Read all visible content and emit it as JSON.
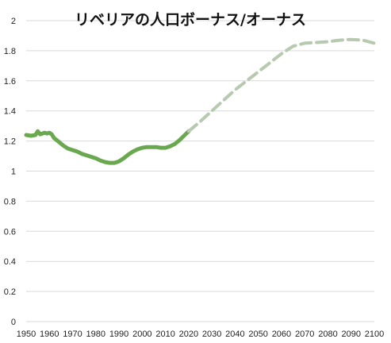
{
  "chart_data": {
    "type": "line",
    "title": "リベリアの人口ボーナス/オーナス",
    "xlabel": "",
    "ylabel": "",
    "xlim": [
      1950,
      2100
    ],
    "ylim": [
      0,
      2
    ],
    "x_ticks": [
      "1950",
      "1960",
      "1970",
      "1980",
      "1990",
      "2000",
      "2010",
      "2020",
      "2030",
      "2040",
      "2050",
      "2060",
      "2070",
      "2080",
      "2090",
      "2100"
    ],
    "y_ticks": [
      "0",
      "0.2",
      "0.4",
      "0.6",
      "0.8",
      "1",
      "1.2",
      "1.4",
      "1.6",
      "1.8",
      "2"
    ],
    "grid": "horizontal",
    "colors": {
      "actual": "#6aa84f",
      "projected": "#b7c9ae",
      "grid": "#d9d9d9"
    },
    "series": [
      {
        "style": "solid",
        "points": [
          [
            1950,
            1.24
          ],
          [
            1952,
            1.235
          ],
          [
            1954,
            1.24
          ],
          [
            1955,
            1.265
          ],
          [
            1956,
            1.245
          ],
          [
            1957,
            1.25
          ],
          [
            1958,
            1.255
          ],
          [
            1959,
            1.25
          ],
          [
            1960,
            1.255
          ],
          [
            1961,
            1.245
          ],
          [
            1962,
            1.22
          ],
          [
            1964,
            1.195
          ],
          [
            1966,
            1.17
          ],
          [
            1968,
            1.15
          ],
          [
            1970,
            1.14
          ],
          [
            1972,
            1.13
          ],
          [
            1974,
            1.115
          ],
          [
            1976,
            1.105
          ],
          [
            1978,
            1.095
          ],
          [
            1980,
            1.085
          ],
          [
            1982,
            1.07
          ],
          [
            1984,
            1.06
          ],
          [
            1986,
            1.055
          ],
          [
            1988,
            1.055
          ],
          [
            1990,
            1.065
          ],
          [
            1992,
            1.085
          ],
          [
            1994,
            1.11
          ],
          [
            1996,
            1.13
          ],
          [
            1998,
            1.145
          ],
          [
            2000,
            1.155
          ],
          [
            2002,
            1.16
          ],
          [
            2004,
            1.16
          ],
          [
            2006,
            1.16
          ],
          [
            2008,
            1.155
          ],
          [
            2010,
            1.155
          ],
          [
            2012,
            1.165
          ],
          [
            2014,
            1.18
          ],
          [
            2016,
            1.205
          ],
          [
            2018,
            1.235
          ],
          [
            2020,
            1.265
          ]
        ]
      },
      {
        "style": "dashed",
        "points": [
          [
            2020,
            1.265
          ],
          [
            2025,
            1.33
          ],
          [
            2030,
            1.4
          ],
          [
            2035,
            1.47
          ],
          [
            2040,
            1.54
          ],
          [
            2045,
            1.6
          ],
          [
            2050,
            1.66
          ],
          [
            2055,
            1.72
          ],
          [
            2060,
            1.78
          ],
          [
            2065,
            1.83
          ],
          [
            2070,
            1.85
          ],
          [
            2075,
            1.855
          ],
          [
            2080,
            1.86
          ],
          [
            2085,
            1.87
          ],
          [
            2090,
            1.875
          ],
          [
            2095,
            1.87
          ],
          [
            2100,
            1.85
          ]
        ]
      }
    ]
  }
}
